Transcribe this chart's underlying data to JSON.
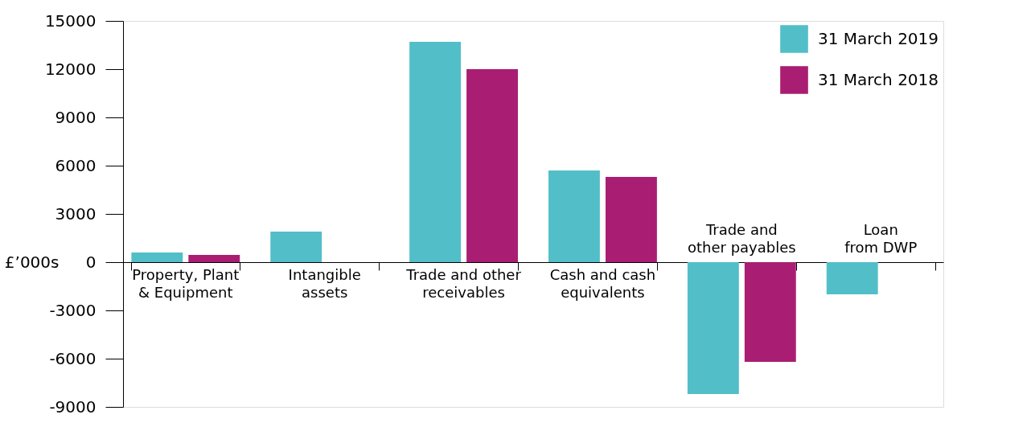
{
  "chart_data": {
    "type": "bar",
    "categories": [
      "Property, Plant & Equipment",
      "Intangible assets",
      "Trade and other receivables",
      "Cash and cash equivalents",
      "Trade and other payables",
      "Loan from DWP"
    ],
    "series": [
      {
        "name": "31 March 2019",
        "color": "#52bec8",
        "values": [
          600,
          1900,
          13700,
          5700,
          -8200,
          -2000
        ]
      },
      {
        "name": "31 March 2018",
        "color": "#a91e72",
        "values": [
          450,
          null,
          12000,
          5300,
          -6200,
          null
        ]
      }
    ],
    "ylabel": "£’000s",
    "ylim": [
      -9000,
      15000
    ],
    "yticks": [
      -9000,
      -6000,
      -3000,
      0,
      3000,
      6000,
      9000,
      12000,
      15000
    ],
    "grid": false,
    "legend": "top right"
  }
}
